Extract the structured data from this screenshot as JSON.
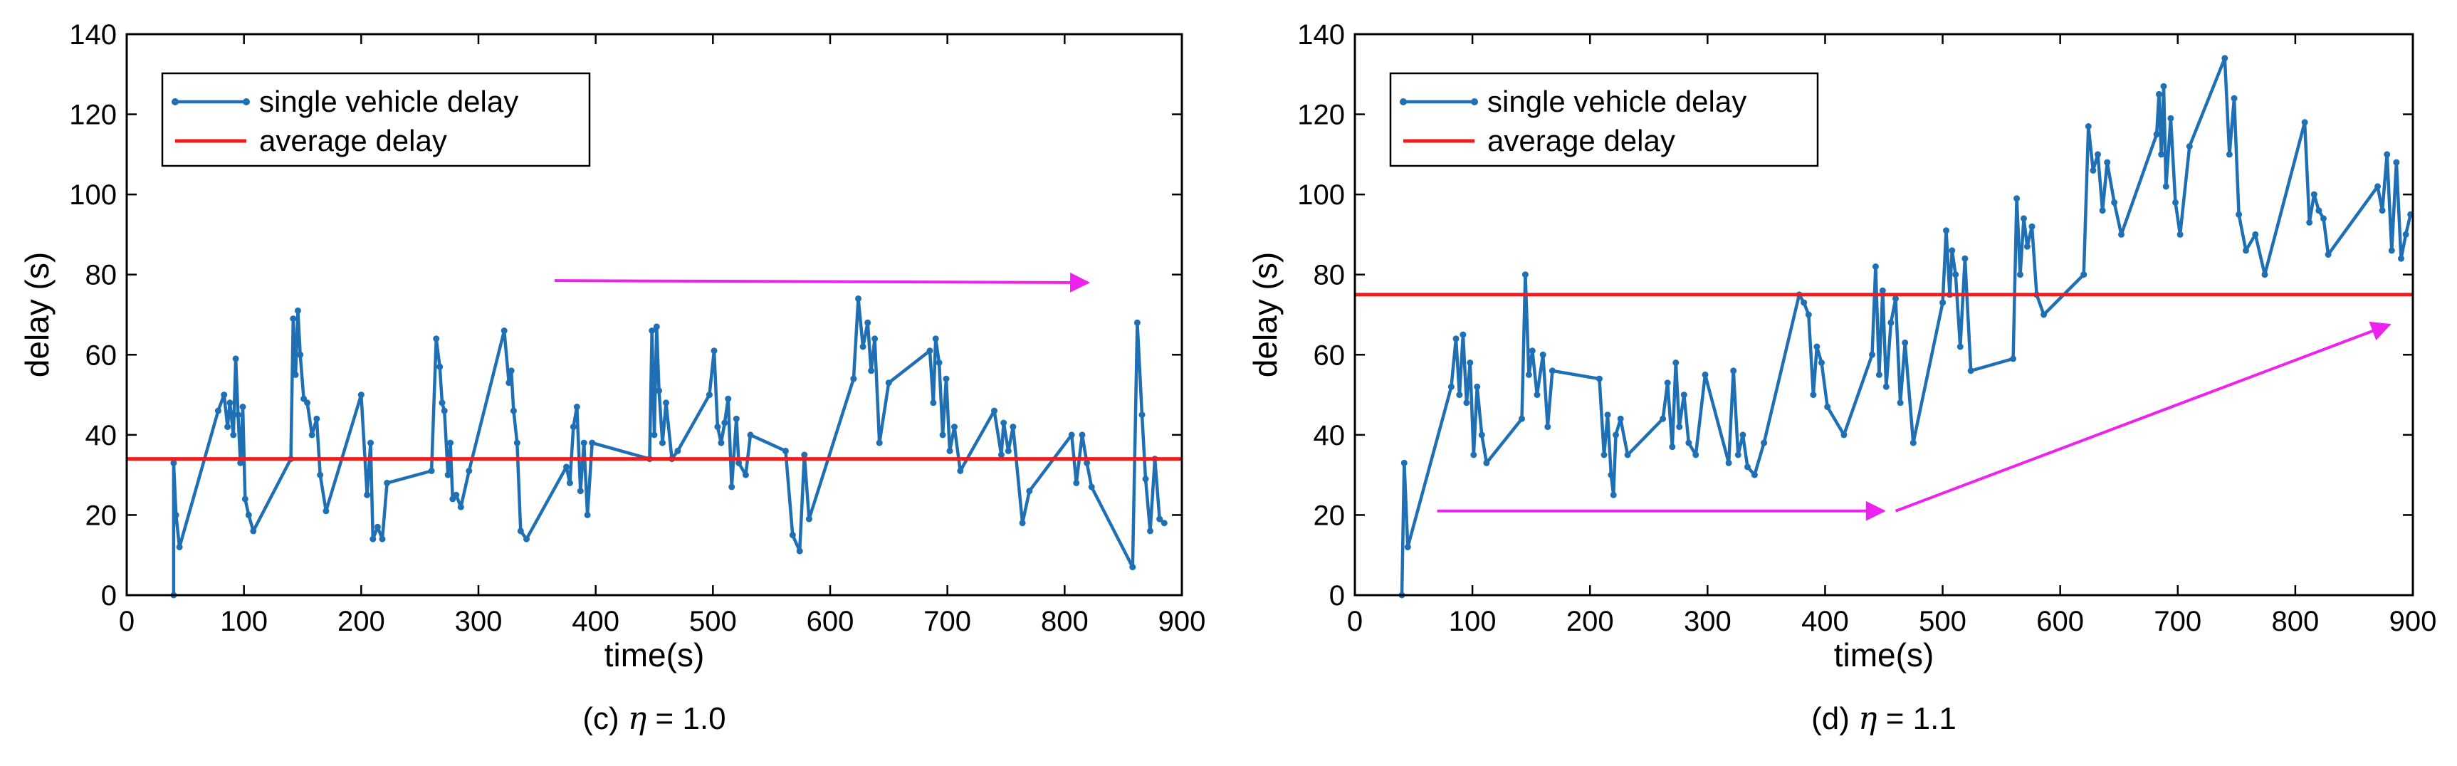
{
  "colors": {
    "series": "#1f6fb5",
    "average": "#ee1c1c",
    "annotation": "#ee22ee",
    "axis": "#000000"
  },
  "chart_data": [
    {
      "type": "line",
      "caption_prefix": "(c) ",
      "caption_symbol": "η",
      "caption_suffix": " = 1.0",
      "xlabel": "time(s)",
      "ylabel": "delay (s)",
      "xlim": [
        0,
        900
      ],
      "ylim": [
        0,
        140
      ],
      "xticks": [
        0,
        100,
        200,
        300,
        400,
        500,
        600,
        700,
        800,
        900
      ],
      "yticks": [
        0,
        20,
        40,
        60,
        80,
        100,
        120,
        140
      ],
      "grid": false,
      "legend_position": "top-left",
      "legend": [
        "single vehicle delay",
        "average delay"
      ],
      "average_delay": 34,
      "annotations": [
        {
          "type": "arrow",
          "from": [
            365,
            78.5
          ],
          "to": [
            820,
            78
          ]
        }
      ],
      "series": [
        {
          "name": "single vehicle delay",
          "x": [
            40,
            40,
            42,
            45,
            78,
            83,
            86,
            88,
            91,
            93,
            95,
            97,
            99,
            101,
            104,
            108,
            140,
            142,
            144,
            146,
            148,
            151,
            154,
            158,
            162,
            165,
            170,
            200,
            205,
            208,
            210,
            214,
            218,
            222,
            260,
            264,
            267,
            269,
            271,
            274,
            276,
            278,
            281,
            285,
            292,
            322,
            326,
            328,
            330,
            333,
            336,
            341,
            375,
            378,
            381,
            384,
            387,
            390,
            393,
            397,
            446,
            448,
            450,
            452,
            454,
            457,
            460,
            465,
            470,
            497,
            501,
            504,
            507,
            510,
            513,
            516,
            520,
            522,
            528,
            532,
            562,
            568,
            574,
            578,
            582,
            620,
            624,
            628,
            632,
            635,
            638,
            642,
            650,
            685,
            688,
            690,
            693,
            696,
            699,
            702,
            706,
            711,
            740,
            746,
            748,
            752,
            756,
            764,
            770,
            806,
            810,
            815,
            819,
            823,
            858,
            862,
            866,
            869,
            873,
            877,
            881,
            885
          ],
          "y": [
            0,
            33,
            20,
            12,
            46,
            50,
            42,
            48,
            40,
            59,
            45,
            33,
            47,
            24,
            20,
            16,
            34,
            69,
            55,
            71,
            60,
            49,
            48,
            40,
            44,
            30,
            21,
            50,
            25,
            38,
            14,
            17,
            14,
            28,
            31,
            64,
            57,
            48,
            46,
            30,
            38,
            24,
            25,
            22,
            31,
            66,
            53,
            56,
            46,
            38,
            16,
            14,
            32,
            28,
            42,
            47,
            26,
            38,
            20,
            38,
            34,
            66,
            40,
            67,
            51,
            38,
            48,
            34,
            36,
            50,
            61,
            42,
            38,
            43,
            49,
            27,
            44,
            33,
            30,
            40,
            36,
            15,
            11,
            35,
            19,
            54,
            74,
            62,
            68,
            56,
            64,
            38,
            53,
            61,
            48,
            64,
            58,
            40,
            54,
            36,
            42,
            31,
            46,
            35,
            43,
            36,
            42,
            18,
            26,
            40,
            28,
            40,
            33,
            27,
            7,
            68,
            45,
            29,
            16,
            34,
            19,
            18
          ]
        }
      ]
    },
    {
      "type": "line",
      "caption_prefix": "(d) ",
      "caption_symbol": "η",
      "caption_suffix": " = 1.1",
      "xlabel": "time(s)",
      "ylabel": "delay (s)",
      "xlim": [
        0,
        900
      ],
      "ylim": [
        0,
        140
      ],
      "xticks": [
        0,
        100,
        200,
        300,
        400,
        500,
        600,
        700,
        800,
        900
      ],
      "yticks": [
        0,
        20,
        40,
        60,
        80,
        100,
        120,
        140
      ],
      "grid": false,
      "legend_position": "top-left",
      "legend": [
        "single vehicle delay",
        "average delay"
      ],
      "average_delay": 75,
      "annotations": [
        {
          "type": "arrow",
          "from": [
            70,
            21
          ],
          "to": [
            450,
            21
          ]
        },
        {
          "type": "arrow",
          "from": [
            460,
            21
          ],
          "to": [
            880,
            67.5
          ]
        }
      ],
      "series": [
        {
          "name": "single vehicle delay",
          "x": [
            40,
            42,
            45,
            82,
            86,
            89,
            92,
            95,
            98,
            101,
            104,
            108,
            112,
            142,
            145,
            148,
            151,
            155,
            160,
            164,
            168,
            208,
            212,
            215,
            218,
            220,
            222,
            226,
            232,
            262,
            266,
            270,
            273,
            276,
            280,
            284,
            290,
            298,
            318,
            322,
            326,
            330,
            334,
            340,
            348,
            378,
            382,
            386,
            390,
            393,
            397,
            402,
            416,
            440,
            443,
            446,
            449,
            452,
            456,
            460,
            464,
            468,
            475,
            500,
            503,
            506,
            508,
            511,
            515,
            519,
            524,
            560,
            563,
            566,
            569,
            572,
            576,
            580,
            586,
            620,
            624,
            628,
            632,
            636,
            640,
            646,
            652,
            682,
            684,
            686,
            688,
            690,
            694,
            698,
            702,
            710,
            740,
            744,
            748,
            752,
            758,
            766,
            774,
            808,
            812,
            816,
            820,
            824,
            828,
            870,
            874,
            878,
            882,
            886,
            890,
            894,
            898
          ],
          "y": [
            0,
            33,
            12,
            52,
            64,
            50,
            65,
            48,
            58,
            35,
            52,
            40,
            33,
            44,
            80,
            55,
            61,
            50,
            60,
            42,
            56,
            54,
            35,
            45,
            30,
            25,
            40,
            44,
            35,
            44,
            53,
            37,
            58,
            42,
            50,
            38,
            35,
            55,
            33,
            56,
            35,
            40,
            32,
            30,
            38,
            75,
            73,
            70,
            50,
            62,
            58,
            47,
            40,
            60,
            82,
            55,
            76,
            52,
            68,
            74,
            48,
            63,
            38,
            73,
            91,
            75,
            86,
            80,
            62,
            84,
            56,
            59,
            99,
            80,
            94,
            87,
            92,
            75,
            70,
            80,
            117,
            106,
            110,
            96,
            108,
            98,
            90,
            115,
            125,
            110,
            127,
            102,
            119,
            98,
            90,
            112,
            134,
            110,
            124,
            95,
            86,
            90,
            80,
            118,
            93,
            100,
            96,
            94,
            85,
            102,
            96,
            110,
            86,
            108,
            84,
            90,
            95
          ]
        }
      ]
    }
  ]
}
